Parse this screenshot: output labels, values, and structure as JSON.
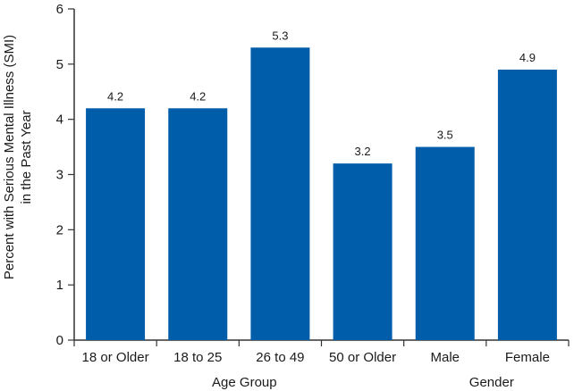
{
  "chart_data": {
    "type": "bar",
    "categories": [
      "18 or Older",
      "18 to 25",
      "26 to 49",
      "50 or Older",
      "Male",
      "Female"
    ],
    "values": [
      4.2,
      4.2,
      5.3,
      3.2,
      3.5,
      4.9
    ],
    "value_labels": [
      "4.2",
      "4.2",
      "5.3",
      "3.2",
      "3.5",
      "4.9"
    ],
    "groups": [
      {
        "label": "Age Group",
        "categories": [
          "18 or Older",
          "18 to 25",
          "26 to 49",
          "50 or Older"
        ]
      },
      {
        "label": "Gender",
        "categories": [
          "Male",
          "Female"
        ]
      }
    ],
    "ylabel_lines": [
      "Percent with Serious Mental Illness (SMI)",
      "in the Past Year"
    ],
    "ylim": [
      0,
      6
    ],
    "yticks": [
      "0",
      "1",
      "2",
      "3",
      "4",
      "5",
      "6"
    ],
    "bar_color": "#005DAA",
    "grid": false
  }
}
